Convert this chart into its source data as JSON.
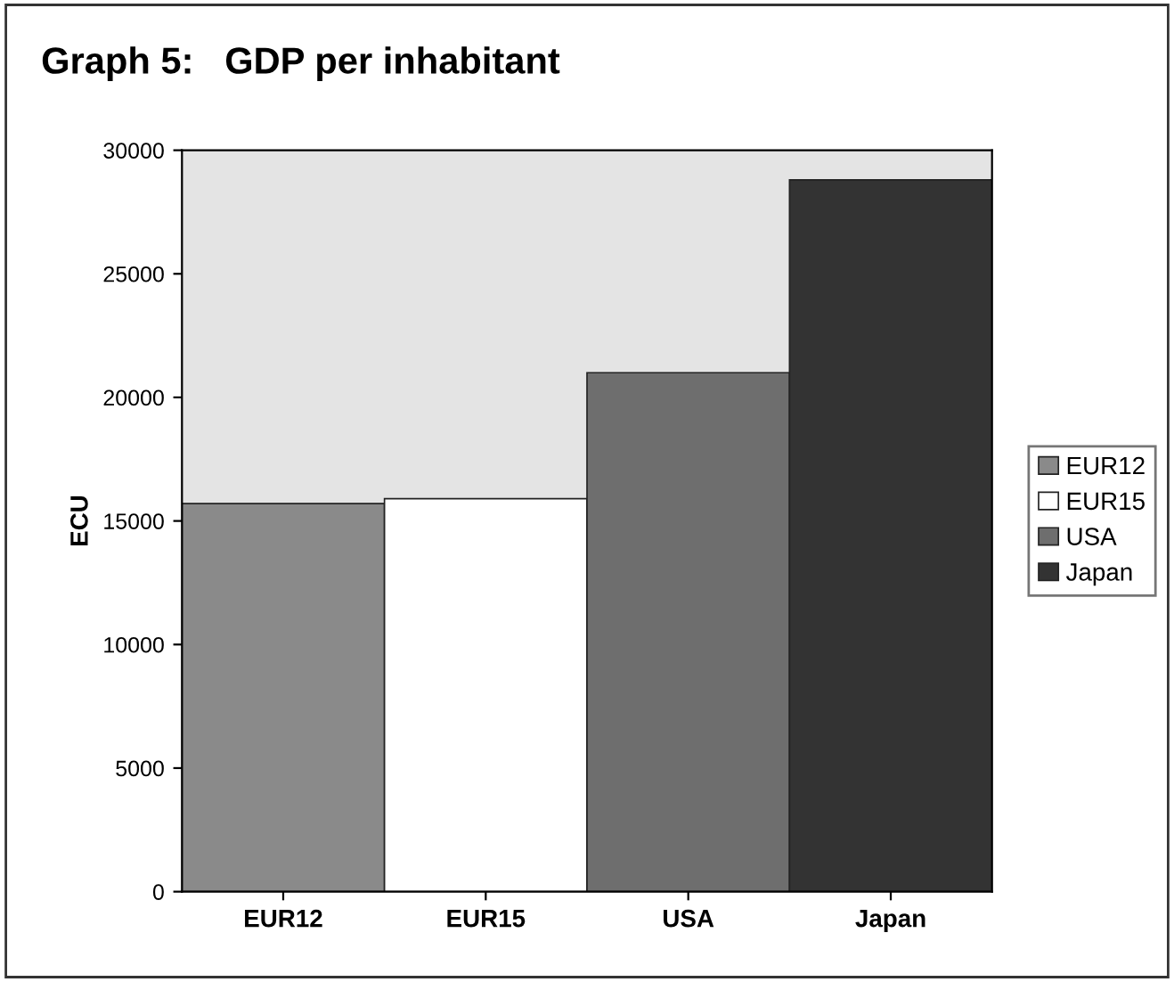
{
  "chart_data": {
    "type": "bar",
    "title": "Graph 5:   GDP per inhabitant",
    "ylabel": "ECU",
    "categories": [
      "EUR12",
      "EUR15",
      "USA",
      "Japan"
    ],
    "series": [
      {
        "name": "EUR12",
        "color": "#8a8a8a",
        "values": [
          15700,
          null,
          null,
          null
        ]
      },
      {
        "name": "EUR15",
        "color": "#ffffff",
        "values": [
          null,
          15900,
          null,
          null
        ]
      },
      {
        "name": "USA",
        "color": "#6e6e6e",
        "values": [
          null,
          null,
          21000,
          null
        ]
      },
      {
        "name": "Japan",
        "color": "#333333",
        "values": [
          null,
          null,
          null,
          28800
        ]
      }
    ],
    "ylim": [
      0,
      30000
    ],
    "yticks": [
      0,
      5000,
      10000,
      15000,
      20000,
      25000,
      30000
    ],
    "grid": false,
    "legend": "right"
  }
}
